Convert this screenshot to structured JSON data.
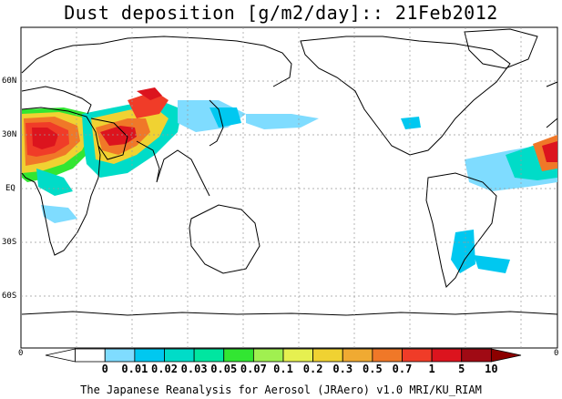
{
  "title": "Dust deposition [g/m2/day]:: 21Feb2012",
  "footer": "The Japanese Reanalysis for Aerosol (JRAero) v1.0 MRI/KU_RIAM",
  "lat_labels": [
    "60N",
    "30N",
    "EQ",
    "30S",
    "60S"
  ],
  "lon_edge_labels": [
    "0",
    "0"
  ],
  "legend": {
    "levels": [
      "0",
      "0.01",
      "0.02",
      "0.03",
      "0.05",
      "0.07",
      "0.1",
      "0.2",
      "0.3",
      "0.5",
      "0.7",
      "1",
      "5",
      "10"
    ],
    "colors": [
      "#ffffff",
      "#ffffff",
      "#7fdcff",
      "#00c8f0",
      "#00dcc8",
      "#00e6a0",
      "#32e632",
      "#a0f050",
      "#e6f050",
      "#f0d232",
      "#f0aa32",
      "#f07828",
      "#f03c28",
      "#dc141e",
      "#a00a14",
      "#8c0000"
    ]
  },
  "colors": {
    "coast": "#000000",
    "grid": "#999999"
  }
}
